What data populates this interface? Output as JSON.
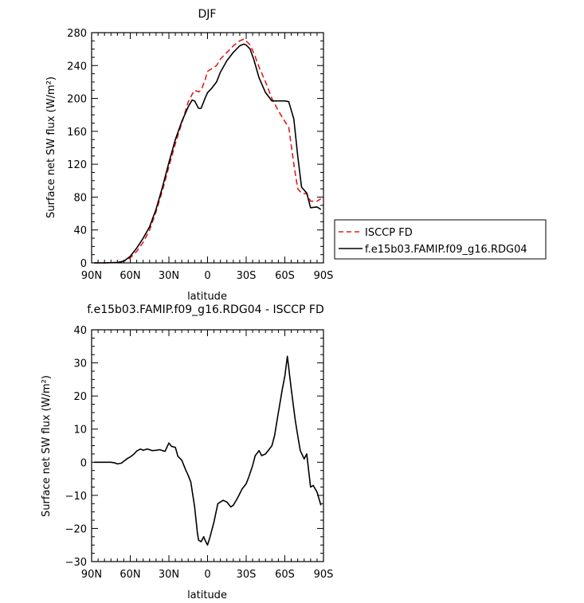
{
  "chart_data": [
    {
      "type": "line",
      "title": "DJF",
      "xlabel": "latitude",
      "ylabel": "Surface net SW flux (W/m²)",
      "xlim": [
        90,
        -90
      ],
      "ylim": [
        0,
        280
      ],
      "x_ticks": [
        90,
        60,
        30,
        0,
        -30,
        -60,
        -90
      ],
      "x_tick_labels": [
        "90N",
        "60N",
        "30N",
        "0",
        "30S",
        "60S",
        "90S"
      ],
      "y_ticks": [
        0,
        40,
        80,
        120,
        160,
        200,
        240,
        280
      ],
      "y_tick_labels": [
        "0",
        "40",
        "80",
        "120",
        "160",
        "200",
        "240",
        "280"
      ],
      "series": [
        {
          "name": "ISCCP FD",
          "color": "#e41a1c",
          "style": "dashed",
          "x": [
            88,
            80,
            70,
            65,
            60,
            55,
            50,
            45,
            40,
            35,
            30,
            25,
            20,
            15,
            12,
            10,
            7,
            5,
            2,
            0,
            -3,
            -7,
            -10,
            -15,
            -20,
            -25,
            -28,
            -30,
            -33,
            -36,
            -40,
            -45,
            -50,
            -55,
            -60,
            -63,
            -67,
            -70,
            -73,
            -77,
            -80,
            -85,
            -88
          ],
          "values": [
            0,
            0,
            0.5,
            2,
            6,
            14,
            25,
            40,
            62,
            88,
            117,
            145,
            170,
            196,
            205,
            210,
            208,
            210,
            222,
            233,
            236,
            240,
            248,
            256,
            264,
            270,
            272,
            270,
            265,
            255,
            238,
            220,
            200,
            185,
            172,
            165,
            120,
            90,
            85,
            84,
            75,
            75,
            78
          ]
        },
        {
          "name": "f.e15b03.FAMIP.f09_g16.RDG04",
          "color": "#000000",
          "style": "solid",
          "x": [
            88,
            80,
            70,
            65,
            60,
            55,
            50,
            45,
            40,
            35,
            30,
            25,
            20,
            15,
            12,
            10,
            7,
            5,
            2,
            0,
            -3,
            -7,
            -10,
            -15,
            -20,
            -25,
            -28,
            -30,
            -33,
            -36,
            -40,
            -45,
            -50,
            -55,
            -60,
            -63,
            -67,
            -70,
            -73,
            -77,
            -80,
            -85,
            -88
          ],
          "values": [
            0,
            0,
            0.5,
            2,
            8,
            18,
            30,
            44,
            65,
            92,
            122,
            150,
            172,
            190,
            198,
            197,
            188,
            188,
            200,
            207,
            212,
            220,
            232,
            246,
            256,
            264,
            266,
            265,
            260,
            247,
            225,
            207,
            197,
            197,
            197,
            196,
            175,
            130,
            92,
            85,
            67,
            68,
            65
          ]
        }
      ],
      "legend": "right"
    },
    {
      "type": "line",
      "title": "f.e15b03.FAMIP.f09_g16.RDG04 - ISCCP FD",
      "xlabel": "latitude",
      "ylabel": "Surface net SW flux (W/m²)",
      "xlim": [
        90,
        -90
      ],
      "ylim": [
        -30,
        40
      ],
      "x_ticks": [
        90,
        60,
        30,
        0,
        -30,
        -60,
        -90
      ],
      "x_tick_labels": [
        "90N",
        "60N",
        "30N",
        "0",
        "30S",
        "60S",
        "90S"
      ],
      "y_ticks": [
        -30,
        -20,
        -10,
        0,
        10,
        20,
        30,
        40
      ],
      "y_tick_labels": [
        "−30",
        "−20",
        "−10",
        "0",
        "10",
        "20",
        "30",
        "40"
      ],
      "series": [
        {
          "color": "#000000",
          "style": "solid",
          "x": [
            88,
            80,
            75,
            72,
            70,
            67,
            65,
            62,
            60,
            57,
            55,
            52,
            50,
            47,
            45,
            43,
            40,
            37,
            35,
            33,
            30,
            28,
            25,
            23,
            20,
            17,
            15,
            13,
            10,
            8,
            7,
            5,
            3,
            2,
            0,
            -2,
            -5,
            -8,
            -10,
            -12,
            -15,
            -18,
            -20,
            -23,
            -25,
            -27,
            -30,
            -32,
            -35,
            -37,
            -40,
            -42,
            -45,
            -48,
            -50,
            -52,
            -55,
            -58,
            -60,
            -62,
            -65,
            -68,
            -70,
            -72,
            -75,
            -77,
            -80,
            -82,
            -85,
            -88
          ],
          "values": [
            0,
            0,
            0,
            -0.2,
            -0.5,
            -0.3,
            0.3,
            1.2,
            1.6,
            2.5,
            3.4,
            4.0,
            3.6,
            4.0,
            3.8,
            3.5,
            3.6,
            3.8,
            3.5,
            3.3,
            5.8,
            4.8,
            4.5,
            1.8,
            0.6,
            -2.3,
            -4.0,
            -6.0,
            -13.5,
            -21.0,
            -23.5,
            -24.0,
            -22.5,
            -23.5,
            -25.0,
            -22.5,
            -18.0,
            -12.5,
            -12.0,
            -11.5,
            -12.0,
            -13.5,
            -13.0,
            -11.0,
            -9.5,
            -8.0,
            -6.5,
            -4.5,
            -1.0,
            2.0,
            3.5,
            2.0,
            2.5,
            4.0,
            5.0,
            8.0,
            15.0,
            22.0,
            26.0,
            32.0,
            22.0,
            13.0,
            8.0,
            3.5,
            1.0,
            2.5,
            -7.5,
            -7.0,
            -9.0,
            -13.0
          ]
        }
      ]
    }
  ]
}
